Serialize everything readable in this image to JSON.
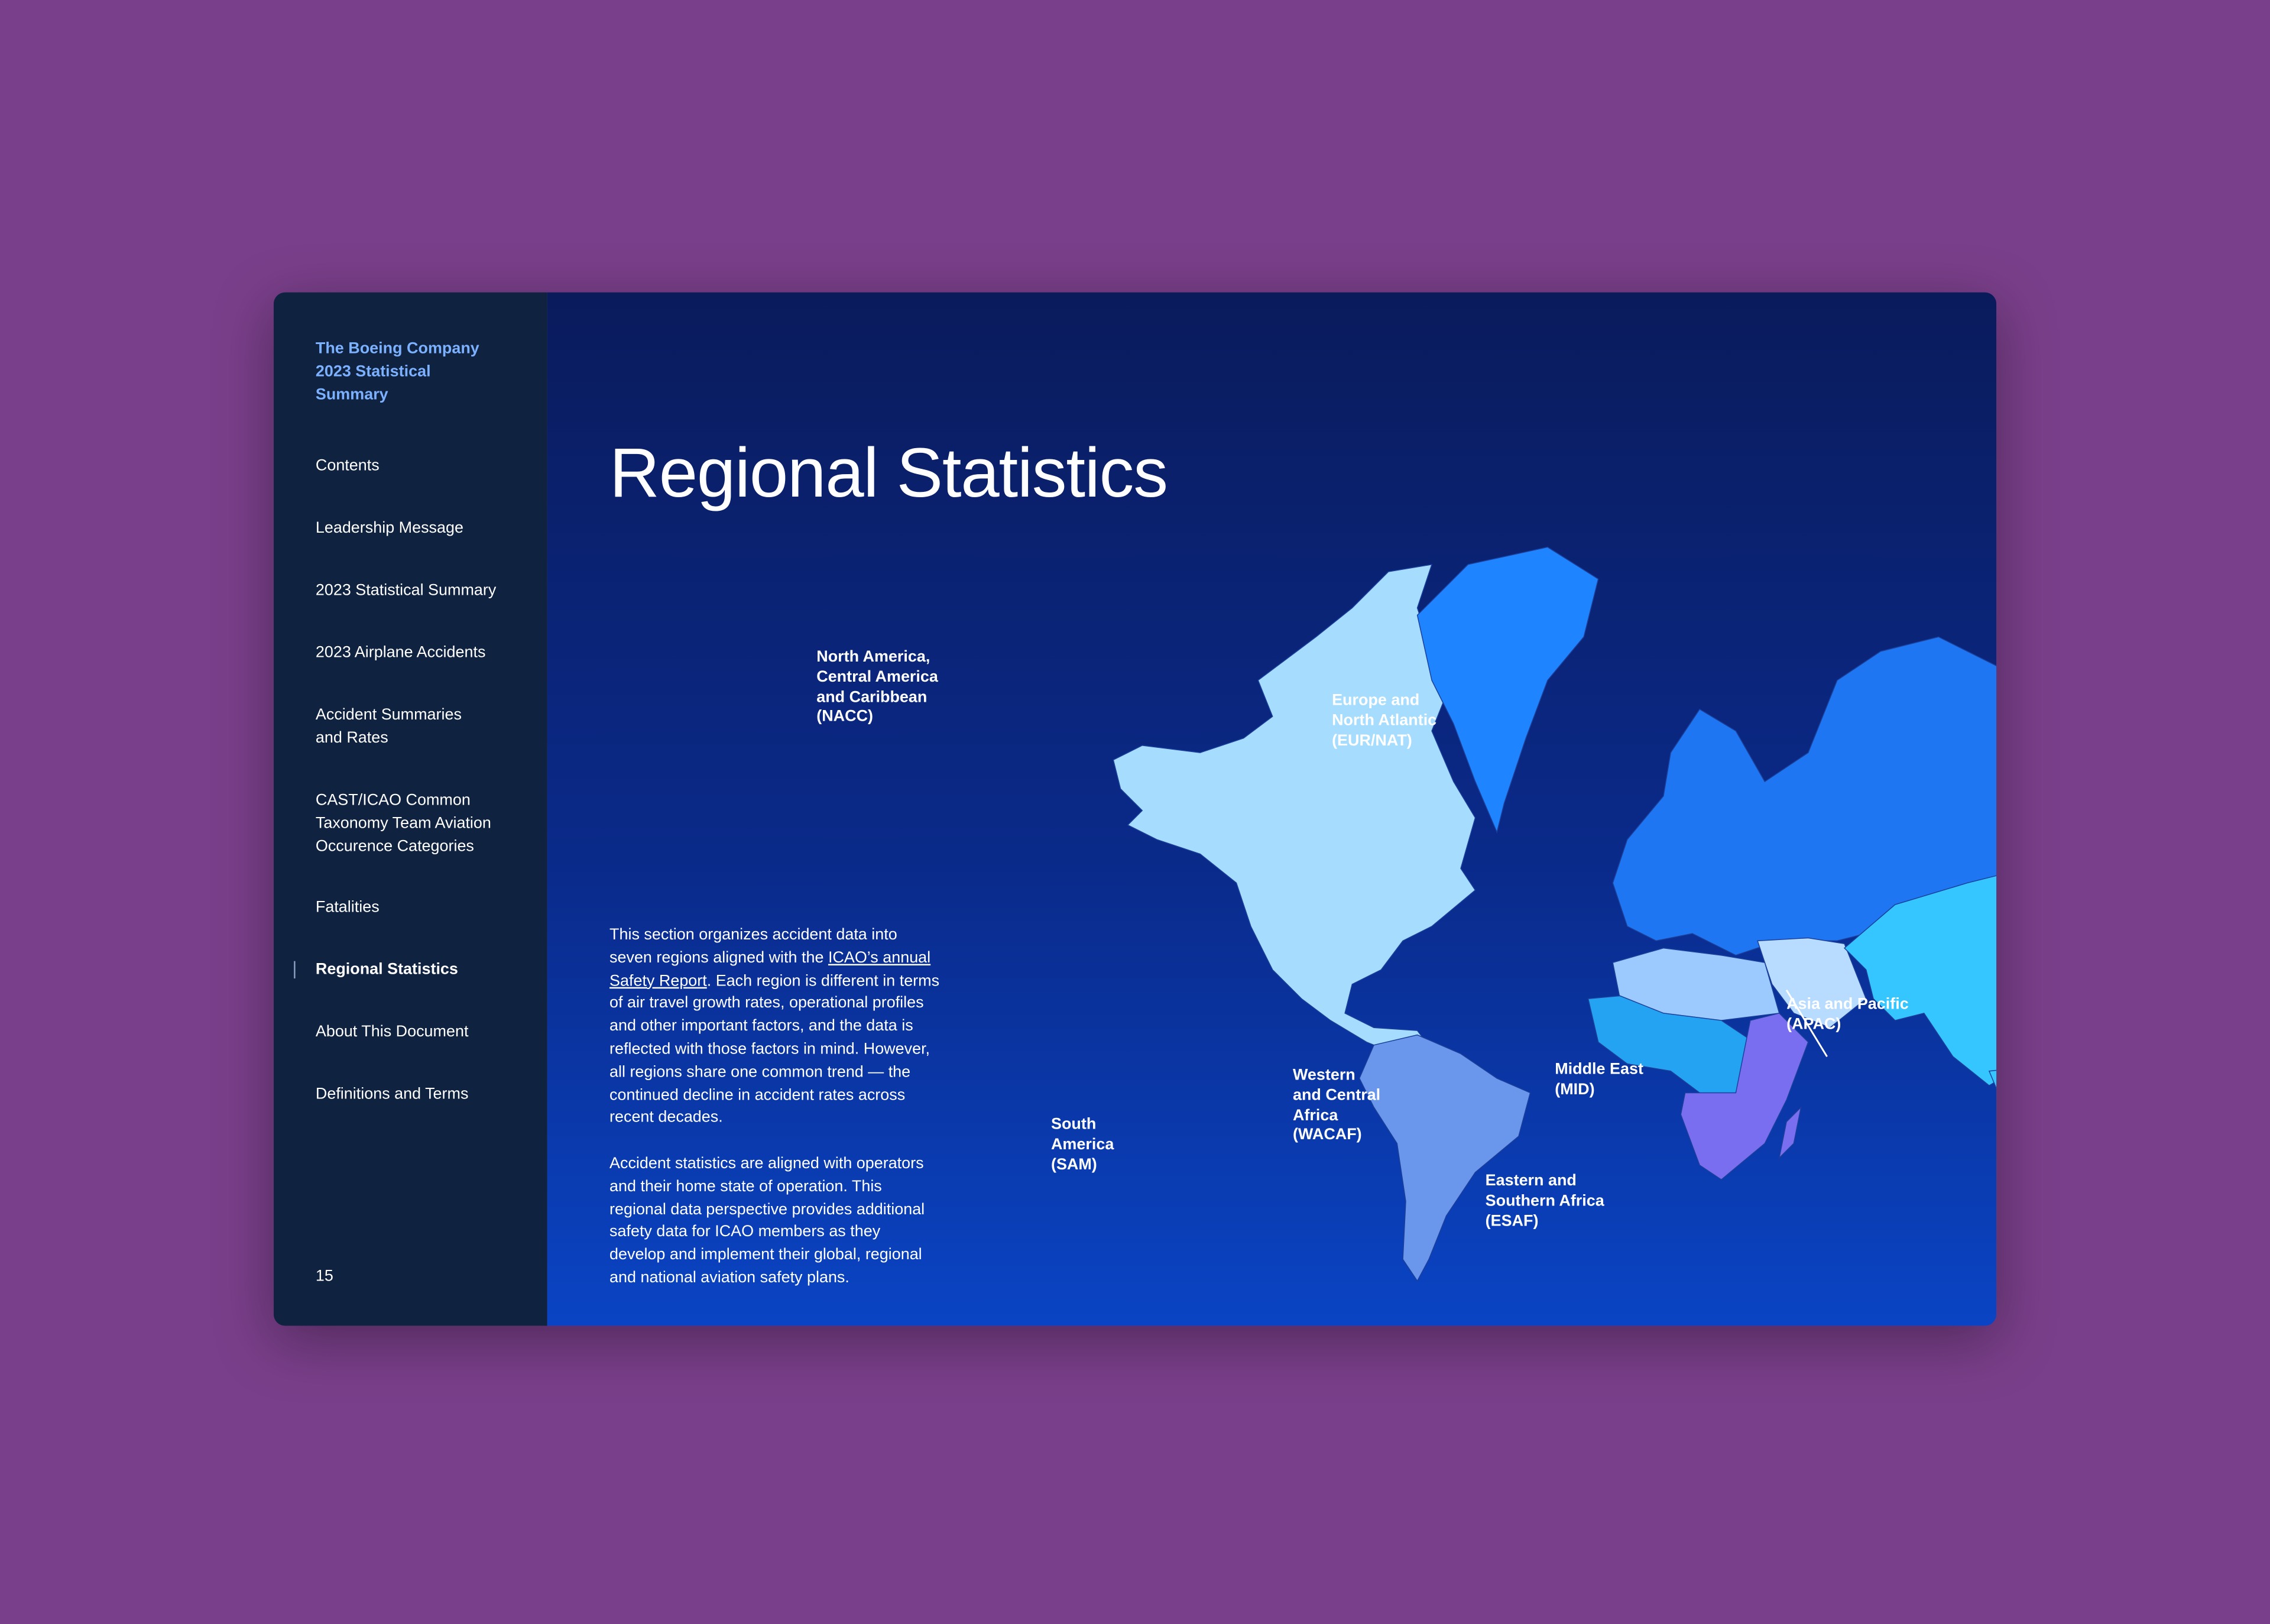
{
  "sidebar": {
    "title": "The Boeing Company\n2023 Statistical\nSummary",
    "nav": [
      {
        "label": "Contents"
      },
      {
        "label": "Leadership Message"
      },
      {
        "label": "2023 Statistical Summary"
      },
      {
        "label": "2023 Airplane Accidents"
      },
      {
        "label": "Accident Summaries\nand Rates"
      },
      {
        "label": "CAST/ICAO Common\nTaxonomy Team Aviation\nOccurence Categories"
      },
      {
        "label": "Fatalities"
      },
      {
        "label": "Regional Statistics",
        "active": true
      },
      {
        "label": "About This Document"
      },
      {
        "label": "Definitions and Terms"
      }
    ],
    "page_number": "15"
  },
  "main": {
    "heading": "Regional Statistics",
    "paragraphs": [
      {
        "before": "This section organizes accident data into seven regions aligned with the ",
        "link": "ICAO’s annual Safety Report",
        "after": ". Each region is different in terms of air travel growth rates, operational profiles and other important factors, and the data is reflected with those factors in mind. However, all regions share one common trend — the continued decline in accident rates across recent decades."
      },
      {
        "text": "Accident statistics are aligned with operators and their home state of operation. This regional data perspective provides additional safety data for ICAO members as they develop and implement their global, regional and national aviation safety plans."
      }
    ],
    "map_labels": [
      "North America,\nCentral America\nand Caribbean\n(NACC)",
      "Europe and\nNorth Atlantic\n(EUR/NAT)",
      "Asia and Pacific\n(APAC)",
      "Middle East\n(MID)",
      "Western\nand Central\nAfrica\n(WACAF)",
      "South\nAmerica\n(SAM)",
      "Eastern and\nSouthern Africa\n(ESAF)"
    ]
  }
}
